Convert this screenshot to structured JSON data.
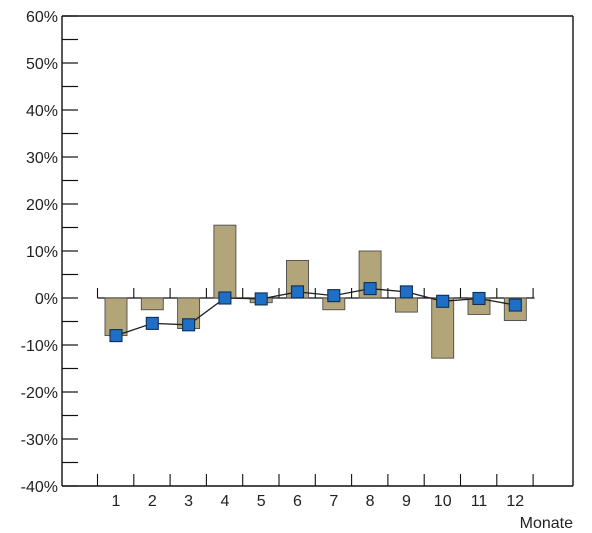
{
  "colors": {
    "bar_fill": "#b3a57a",
    "bar_stroke": "#4b4b4b",
    "line_stroke": "#1f1f1f",
    "marker_fill": "#1f6fc7",
    "marker_stroke": "#0f2e55",
    "axis_stroke": "#111111",
    "text": "#222222",
    "background": "#ffffff"
  },
  "chart_data": {
    "type": "bar",
    "categories": [
      "1",
      "2",
      "3",
      "4",
      "5",
      "6",
      "7",
      "8",
      "9",
      "10",
      "11",
      "12"
    ],
    "series": [
      {
        "type": "bar",
        "values": [
          -8,
          -2.5,
          -6.5,
          15.5,
          -1,
          8,
          -2.5,
          10,
          -3,
          -12.8,
          -3.5,
          -4.8
        ]
      },
      {
        "type": "line",
        "values": [
          -8,
          -5.4,
          -5.7,
          0,
          -0.2,
          1.3,
          0.5,
          2,
          1.3,
          -0.7,
          -0.1,
          -1.5
        ]
      }
    ],
    "title": "",
    "xlabel": "Monate",
    "ylabel": "",
    "ylim": [
      -40,
      60
    ],
    "y_ticks": [
      -40,
      -30,
      -20,
      -10,
      0,
      10,
      20,
      30,
      40,
      50,
      60
    ],
    "y_tick_labels": [
      "-40%",
      "-30%",
      "-20%",
      "-10%",
      "0%",
      "10%",
      "20%",
      "30%",
      "40%",
      "50%",
      "60%"
    ],
    "grid": false,
    "legend": "none"
  }
}
